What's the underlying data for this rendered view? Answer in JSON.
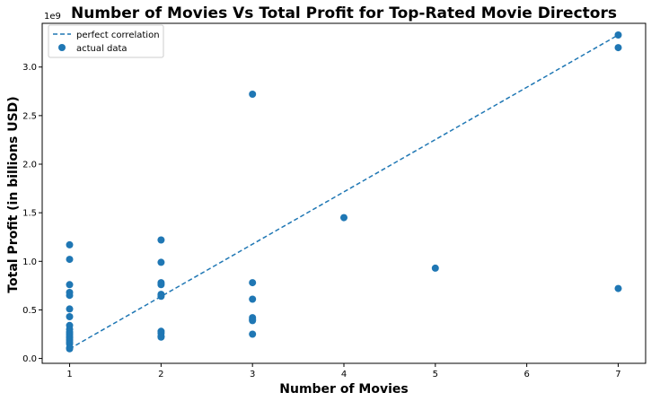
{
  "chart_data": {
    "type": "scatter",
    "title": "Number of Movies Vs Total Profit for Top-Rated Movie Directors",
    "xlabel": "Number of Movies",
    "ylabel": "Total Profit (in billions USD)",
    "y_offset_label": "1e9",
    "xlim": [
      0.7,
      7.3
    ],
    "ylim": [
      -0.05,
      3.45
    ],
    "x_ticks": [
      1,
      2,
      3,
      4,
      5,
      6,
      7
    ],
    "x_tick_labels": [
      "1",
      "2",
      "3",
      "4",
      "5",
      "6",
      "7"
    ],
    "y_ticks": [
      0.0,
      0.5,
      1.0,
      1.5,
      2.0,
      2.5,
      3.0
    ],
    "y_tick_labels": [
      "0.0",
      "0.5",
      "1.0",
      "1.5",
      "2.0",
      "2.5",
      "3.0"
    ],
    "grid": false,
    "legend_position": "top-left",
    "series": [
      {
        "name": "perfect correlation",
        "kind": "line",
        "style": "dashed",
        "color": "#1f77b4",
        "x": [
          1,
          7
        ],
        "y": [
          0.1,
          3.33
        ]
      },
      {
        "name": "actual data",
        "kind": "scatter",
        "color": "#1f77b4",
        "x": [
          1,
          1,
          1,
          1,
          1,
          1,
          1,
          1,
          1,
          1,
          1,
          1,
          1,
          1,
          1,
          1,
          1,
          1,
          2,
          2,
          2,
          2,
          2,
          2,
          2,
          2,
          2,
          2,
          3,
          3,
          3,
          3,
          3,
          3,
          3,
          4,
          5,
          7,
          7,
          7
        ],
        "y": [
          1.17,
          1.02,
          0.76,
          0.68,
          0.65,
          0.51,
          0.43,
          0.34,
          0.3,
          0.27,
          0.25,
          0.23,
          0.21,
          0.19,
          0.17,
          0.15,
          0.11,
          0.1,
          1.22,
          0.99,
          0.78,
          0.76,
          0.66,
          0.64,
          0.28,
          0.26,
          0.23,
          0.22,
          2.72,
          0.78,
          0.61,
          0.42,
          0.4,
          0.39,
          0.25,
          1.45,
          0.93,
          3.33,
          3.2,
          0.72
        ]
      }
    ]
  }
}
